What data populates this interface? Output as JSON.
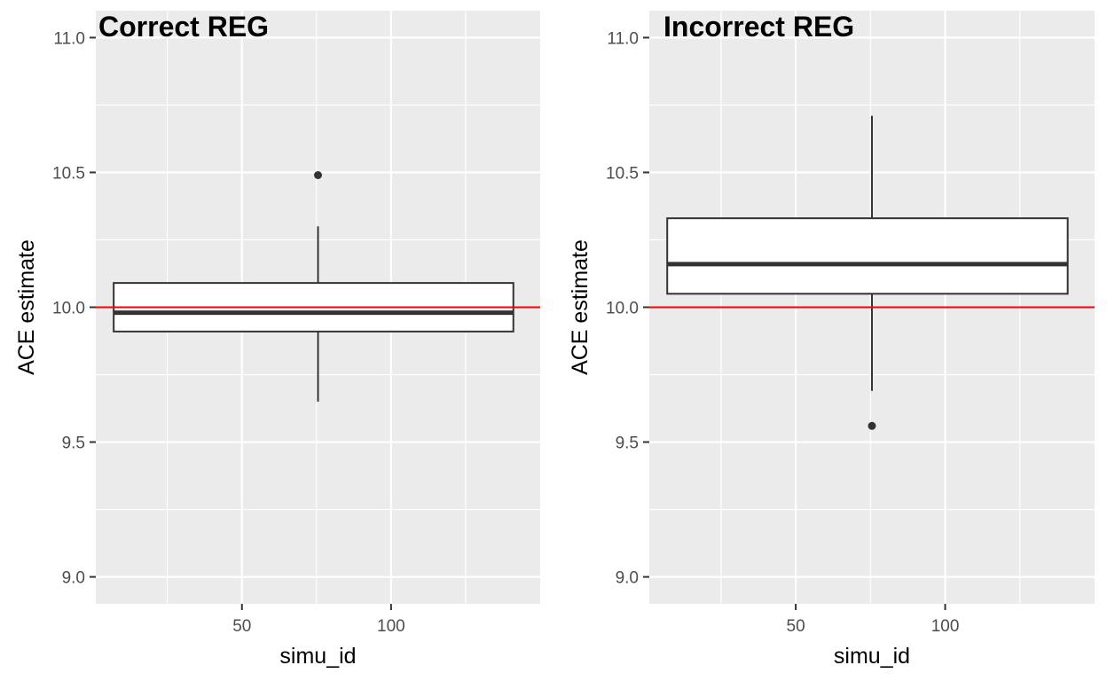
{
  "chart_data": [
    {
      "type": "boxplot",
      "title": "Correct REG",
      "xlabel": "simu_id",
      "ylabel": "ACE estimate",
      "xlim": [
        1,
        150
      ],
      "ylim": [
        8.9,
        11.1
      ],
      "x_ticks": [
        50,
        100
      ],
      "y_ticks": [
        9.0,
        9.5,
        10.0,
        10.5,
        11.0
      ],
      "y_tick_labels": [
        "9.0",
        "9.5",
        "10.0",
        "10.5",
        "11.0"
      ],
      "box": {
        "x_min": 7,
        "x_max": 141,
        "center_x": 75.5,
        "q1": 9.91,
        "median": 9.98,
        "q3": 10.09,
        "whisker_low": 9.65,
        "whisker_high": 10.3
      },
      "outliers": [
        10.49
      ],
      "reference_line": {
        "y": 10.0,
        "color": "#ff0000"
      },
      "grid": true
    },
    {
      "type": "boxplot",
      "title": "Incorrect REG",
      "xlabel": "simu_id",
      "ylabel": "ACE estimate",
      "xlim": [
        1,
        150
      ],
      "ylim": [
        8.9,
        11.1
      ],
      "x_ticks": [
        50,
        100
      ],
      "y_ticks": [
        9.0,
        9.5,
        10.0,
        10.5,
        11.0
      ],
      "y_tick_labels": [
        "9.0",
        "9.5",
        "10.0",
        "10.5",
        "11.0"
      ],
      "box": {
        "x_min": 7,
        "x_max": 141,
        "center_x": 75.5,
        "q1": 10.05,
        "median": 10.16,
        "q3": 10.33,
        "whisker_low": 9.69,
        "whisker_high": 10.71
      },
      "outliers": [
        9.56
      ],
      "reference_line": {
        "y": 10.0,
        "color": "#ff0000"
      },
      "grid": true
    }
  ],
  "colors": {
    "panel_background": "#ebebeb",
    "grid": "#ffffff",
    "box_fill": "#ffffff",
    "box_stroke": "#333333",
    "reference_line": "#ff0000",
    "tick_text": "#4d4d4d"
  }
}
